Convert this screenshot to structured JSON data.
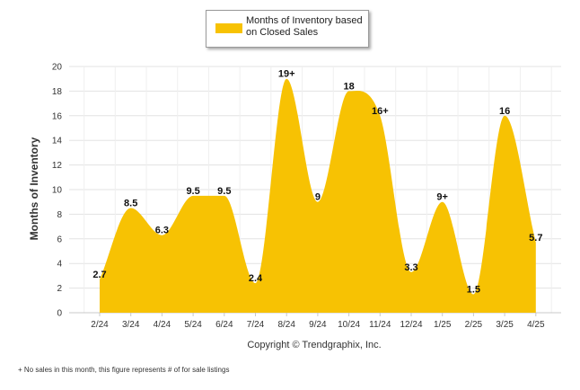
{
  "legend": {
    "label": "Months of Inventory based on Closed Sales"
  },
  "copyright": "Copyright © Trendgraphix, Inc.",
  "footnote": {
    "marker": "+",
    "text": "No sales in this month, this figure represents # of for sale listings"
  },
  "colors": {
    "area": "#F7C203",
    "grid": "#e3e3e3"
  },
  "chart_data": {
    "type": "area",
    "ylabel": "Months of Inventory",
    "xlabel": "",
    "ylim": [
      0,
      20
    ],
    "yticks": [
      0,
      2,
      4,
      6,
      8,
      10,
      12,
      14,
      16,
      18,
      20
    ],
    "grid": true,
    "legend_position": "top-center",
    "categories": [
      "2/24",
      "3/24",
      "4/24",
      "5/24",
      "6/24",
      "7/24",
      "8/24",
      "9/24",
      "10/24",
      "11/24",
      "12/24",
      "1/25",
      "2/25",
      "3/25",
      "4/25"
    ],
    "series": [
      {
        "name": "Months of Inventory based on Closed Sales",
        "values": [
          2.7,
          8.5,
          6.3,
          9.5,
          9.5,
          2.4,
          19,
          9,
          18,
          16,
          3.3,
          9,
          1.5,
          16,
          5.7
        ],
        "labels": [
          "2.7",
          "8.5",
          "6.3",
          "9.5",
          "9.5",
          "2.4",
          "19+",
          "9",
          "18",
          "16+",
          "3.3",
          "9+",
          "1.5",
          "16",
          "5.7"
        ]
      }
    ]
  }
}
